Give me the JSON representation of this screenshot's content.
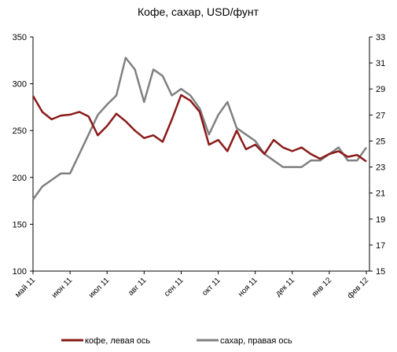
{
  "chart_data": {
    "type": "line",
    "title": "Кофе, сахар, USD/фунт",
    "categories": [
      "май 11",
      null,
      null,
      null,
      "июн 11",
      null,
      null,
      null,
      "июл 11",
      null,
      null,
      null,
      "авг 11",
      null,
      null,
      null,
      "сен 11",
      null,
      null,
      null,
      "окт 11",
      null,
      null,
      null,
      "ноя 11",
      null,
      null,
      null,
      "дек 11",
      null,
      null,
      null,
      "янв 12",
      null,
      null,
      null,
      "фев 12"
    ],
    "series": [
      {
        "name": "кофе, левая ось",
        "color": "#8b1a1a",
        "axis": "y",
        "values": [
          287,
          270,
          262,
          266,
          267,
          270,
          265,
          245,
          255,
          268,
          260,
          250,
          242,
          245,
          238,
          262,
          288,
          282,
          270,
          235,
          240,
          228,
          250,
          230,
          235,
          225,
          240,
          232,
          228,
          232,
          225,
          220,
          225,
          228,
          222,
          224,
          217
        ]
      },
      {
        "name": "сахар, правая ось",
        "color": "#808080",
        "axis": "y2",
        "values": [
          20.5,
          21.5,
          22,
          22.5,
          22.5,
          24,
          25.5,
          27,
          27.8,
          28.5,
          31.4,
          30.5,
          28,
          30.5,
          30,
          28.5,
          29,
          28.5,
          27.5,
          25.5,
          27,
          28,
          26,
          25.5,
          25,
          24,
          23.5,
          23,
          23,
          23,
          23.5,
          23.5,
          24,
          24.5,
          23.5,
          23.5,
          24.5
        ]
      }
    ],
    "ylim": [
      100,
      350
    ],
    "yticks": [
      100,
      150,
      200,
      250,
      300,
      350
    ],
    "y2lim": [
      15,
      33
    ],
    "y2ticks": [
      15,
      17,
      19,
      21,
      23,
      25,
      27,
      29,
      31,
      33
    ],
    "legend": "bottom"
  }
}
